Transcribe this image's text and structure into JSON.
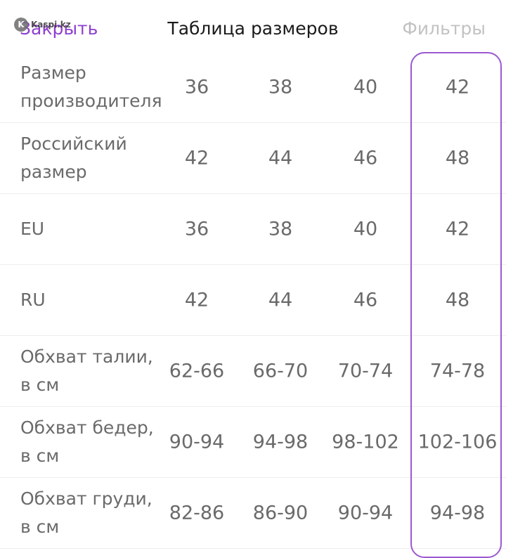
{
  "header": {
    "close_label": "Закрыть",
    "title": "Таблица размеров",
    "filters_label": "Фильтры",
    "watermark": "Kaspi.kz"
  },
  "colors": {
    "accent": "#8f3fd0",
    "highlight_border": "#9b59d0",
    "text": "#6a6a6a",
    "disabled": "#c2c2c2"
  },
  "table": {
    "selected_column_index": 3,
    "rows": [
      {
        "label": "Размер производителя",
        "values": [
          "36",
          "38",
          "40",
          "42"
        ]
      },
      {
        "label": "Российский размер",
        "values": [
          "42",
          "44",
          "46",
          "48"
        ]
      },
      {
        "label": "EU",
        "values": [
          "36",
          "38",
          "40",
          "42"
        ]
      },
      {
        "label": "RU",
        "values": [
          "42",
          "44",
          "46",
          "48"
        ]
      },
      {
        "label": "Обхват талии, в см",
        "values": [
          "62-66",
          "66-70",
          "70-74",
          "74-78"
        ]
      },
      {
        "label": "Обхват бедер, в см",
        "values": [
          "90-94",
          "94-98",
          "98-102",
          "102-106"
        ]
      },
      {
        "label": "Обхват груди, в см",
        "values": [
          "82-86",
          "86-90",
          "90-94",
          "94-98"
        ]
      }
    ]
  }
}
